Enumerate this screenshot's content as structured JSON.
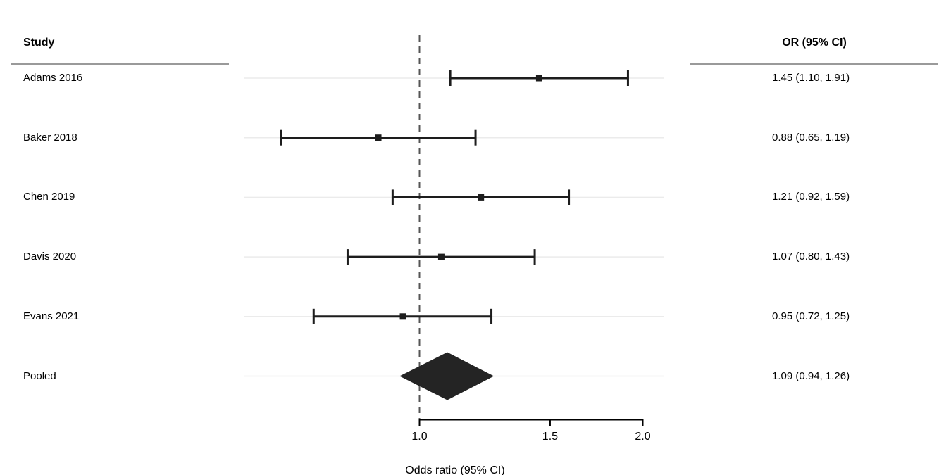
{
  "chart_data": {
    "type": "forest",
    "headers": {
      "study": "Study",
      "or_ci": "OR (95% CI)"
    },
    "studies": [
      {
        "label": "Adams 2016",
        "or": 1.45,
        "lo": 1.1,
        "hi": 1.91,
        "text": "1.45 (1.10, 1.91)"
      },
      {
        "label": "Baker 2018",
        "or": 0.88,
        "lo": 0.65,
        "hi": 1.19,
        "text": "0.88 (0.65, 1.19)"
      },
      {
        "label": "Chen 2019",
        "or": 1.21,
        "lo": 0.92,
        "hi": 1.59,
        "text": "1.21 (0.92, 1.59)"
      },
      {
        "label": "Davis 2020",
        "or": 1.07,
        "lo": 0.8,
        "hi": 1.43,
        "text": "1.07 (0.80, 1.43)"
      },
      {
        "label": "Evans 2021",
        "or": 0.95,
        "lo": 0.72,
        "hi": 1.25,
        "text": "0.95 (0.72, 1.25)"
      }
    ],
    "pooled": {
      "label": "Pooled",
      "or": 1.09,
      "lo": 0.94,
      "hi": 1.26,
      "text": "1.09 (0.94, 1.26)"
    },
    "x_axis": {
      "scale": "log",
      "ticks": [
        1.0,
        1.5,
        2.0
      ],
      "tick_labels": [
        "1.0",
        "1.5",
        "2.0"
      ],
      "label": "Odds ratio (95% CI)",
      "ref_line": 1.0
    },
    "colors": {
      "marker": "#1d1d1d",
      "ci": "#1d1d1d",
      "diamond": "#242424",
      "ref_line": "#555555",
      "row_guide": "#ebebeb",
      "axis": "#000000",
      "rule": "#9a9a9a"
    }
  }
}
